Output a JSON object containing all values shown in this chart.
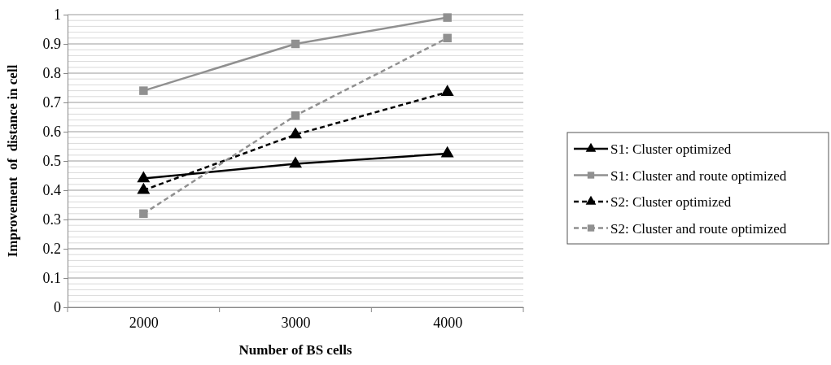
{
  "chart_data": {
    "type": "line",
    "xlabel": "Number of BS cells",
    "ylabel": "Improvement  of  distance in cell",
    "categories": [
      "2000",
      "3000",
      "4000"
    ],
    "series": [
      {
        "name": "S1: Cluster optimized",
        "color": "#000000",
        "values": [
          0.44,
          0.49,
          0.525
        ],
        "marker": "triangle",
        "line_style": "solid"
      },
      {
        "name": "S1: Cluster and route optimized",
        "color": "#909090",
        "values": [
          0.74,
          0.9,
          0.99
        ],
        "marker": "square",
        "line_style": "solid"
      },
      {
        "name": "S2: Cluster optimized",
        "color": "#000000",
        "values": [
          0.4,
          0.59,
          0.735
        ],
        "marker": "triangle",
        "line_style": "dashed"
      },
      {
        "name": "S2: Cluster and route optimized",
        "color": "#909090",
        "values": [
          0.32,
          0.655,
          0.92
        ],
        "marker": "square",
        "line_style": "dashed"
      }
    ],
    "ylim": [
      0,
      1
    ],
    "yticks": [
      0,
      0.1,
      0.2,
      0.3,
      0.4,
      0.5,
      0.6,
      0.7,
      0.8,
      0.9,
      1
    ],
    "grid": "y",
    "legend": "right"
  }
}
